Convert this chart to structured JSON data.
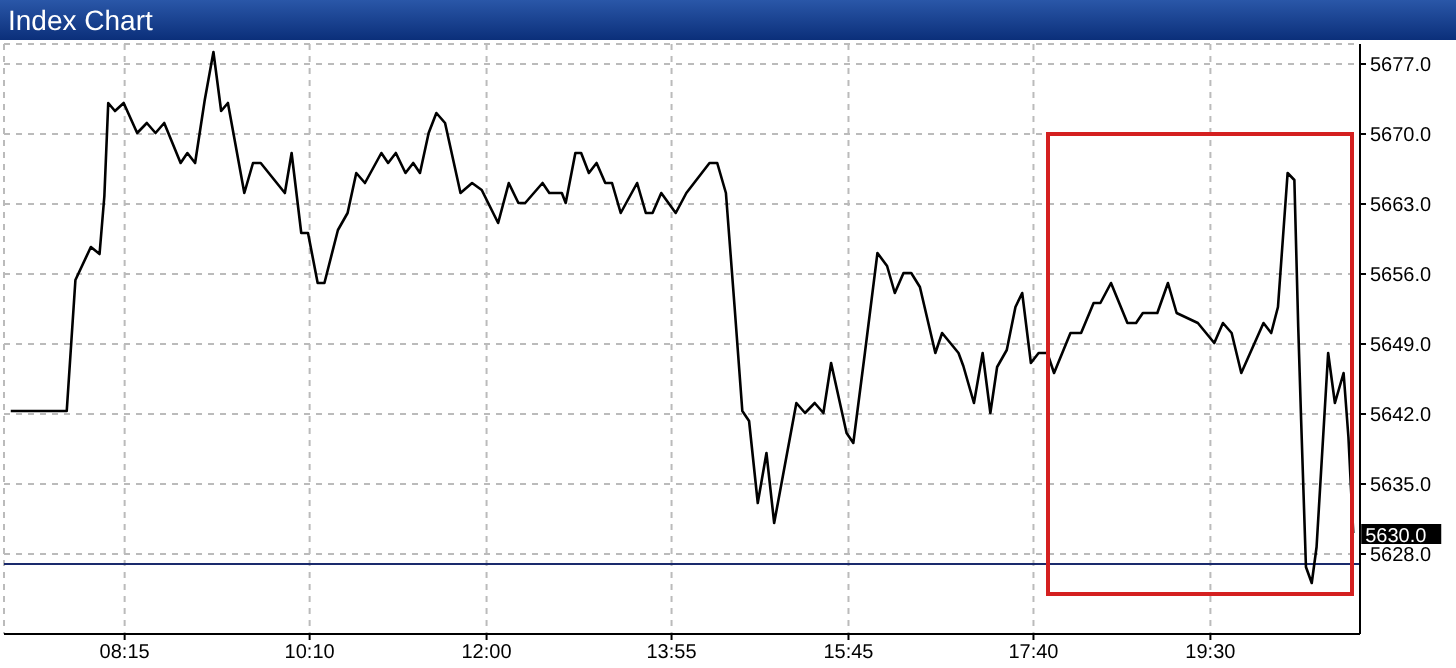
{
  "chart_data": {
    "type": "line",
    "title": "Index Chart",
    "x": [
      7.07,
      7.65,
      7.74,
      7.9,
      7.99,
      8.04,
      8.08,
      8.15,
      8.24,
      8.38,
      8.48,
      8.57,
      8.66,
      8.83,
      8.9,
      8.98,
      9.08,
      9.17,
      9.25,
      9.32,
      9.49,
      9.58,
      9.66,
      9.91,
      9.98,
      10.08,
      10.15,
      10.25,
      10.32,
      10.46,
      10.56,
      10.65,
      10.74,
      10.91,
      10.98,
      11.06,
      11.16,
      11.24,
      11.31,
      11.4,
      11.48,
      11.57,
      11.73,
      11.85,
      11.95,
      12.12,
      12.23,
      12.33,
      12.4,
      12.58,
      12.65,
      12.78,
      12.82,
      12.92,
      12.98,
      13.06,
      13.14,
      13.23,
      13.3,
      13.39,
      13.56,
      13.65,
      13.72,
      13.81,
      13.96,
      14.07,
      14.31,
      14.39,
      14.48,
      14.57,
      14.65,
      14.72,
      14.81,
      14.9,
      14.98,
      15.21,
      15.3,
      15.4,
      15.49,
      15.57,
      15.73,
      15.8,
      15.92,
      16.05,
      16.15,
      16.23,
      16.32,
      16.4,
      16.49,
      16.65,
      16.72,
      16.89,
      16.94,
      17.05,
      17.14,
      17.22,
      17.29,
      17.39,
      17.48,
      17.55,
      17.64,
      17.72,
      17.81,
      17.88,
      18.05,
      18.16,
      18.29,
      18.36,
      18.47,
      18.64,
      18.73,
      18.8,
      18.95,
      19.06,
      19.15,
      19.37,
      19.54,
      19.63,
      19.72,
      19.82,
      20.05,
      20.13,
      20.2,
      20.3,
      20.37,
      20.41,
      20.44,
      20.49,
      20.55,
      20.6,
      20.72,
      20.79,
      20.88,
      20.93,
      20.98
    ],
    "series": [
      {
        "color": "#000000",
        "values": [
          5642.3,
          5642.3,
          5655.4,
          5658.7,
          5658,
          5663.8,
          5673.1,
          5672.3,
          5673.1,
          5670.1,
          5671.1,
          5670.1,
          5671.1,
          5667.1,
          5668.1,
          5667.1,
          5673.4,
          5678.2,
          5672.3,
          5673.1,
          5664.1,
          5667.1,
          5667.1,
          5664.1,
          5668.1,
          5660.1,
          5660.1,
          5655.1,
          5655.1,
          5660.4,
          5662.1,
          5666.1,
          5665.1,
          5668.1,
          5667.1,
          5668.1,
          5666.1,
          5667.1,
          5666.1,
          5670.1,
          5672.1,
          5671.1,
          5664.1,
          5665.1,
          5664.4,
          5661.1,
          5665.1,
          5663.1,
          5663.1,
          5665.1,
          5664.1,
          5664.1,
          5663.1,
          5668.1,
          5668.1,
          5666.1,
          5667.1,
          5665.1,
          5665.1,
          5662.1,
          5665.1,
          5662.1,
          5662.1,
          5664.1,
          5662.1,
          5664.1,
          5667.1,
          5667.1,
          5664.1,
          5652.7,
          5642.3,
          5641.3,
          5633.1,
          5638.1,
          5631.1,
          5643.1,
          5642.1,
          5643.1,
          5642.1,
          5647.1,
          5640.1,
          5639.1,
          5648.1,
          5658.1,
          5656.8,
          5654.1,
          5656.1,
          5656.1,
          5654.7,
          5648.1,
          5650.1,
          5648.1,
          5646.8,
          5643.1,
          5648.1,
          5642.1,
          5646.7,
          5648.4,
          5652.7,
          5654.1,
          5647.1,
          5648.1,
          5648.1,
          5646.1,
          5650.1,
          5650.1,
          5653.1,
          5653.1,
          5655.1,
          5651.1,
          5651.1,
          5652.1,
          5652.1,
          5655.1,
          5652.1,
          5651.1,
          5649.1,
          5651.1,
          5650.1,
          5646.1,
          5651.1,
          5650.1,
          5652.7,
          5666.1,
          5665.4,
          5650.7,
          5641.4,
          5626.7,
          5625.1,
          5628.7,
          5648.1,
          5643.1,
          5646.1,
          5639.7,
          5630.1
        ]
      }
    ],
    "xlim": [
      7.0,
      21.05
    ],
    "xticks": [
      {
        "value": 8.25,
        "label": "08:15"
      },
      {
        "value": 10.1667,
        "label": "10:10"
      },
      {
        "value": 12,
        "label": "12:00"
      },
      {
        "value": 13.9167,
        "label": "13:55"
      },
      {
        "value": 15.75,
        "label": "15:45"
      },
      {
        "value": 17.6667,
        "label": "17:40"
      },
      {
        "value": 19.5,
        "label": "19:30"
      }
    ],
    "ylim": [
      5620,
      5679
    ],
    "yticks": [
      {
        "value": 5628,
        "label": "5628.0"
      },
      {
        "value": 5635,
        "label": "5635.0"
      },
      {
        "value": 5642,
        "label": "5642.0"
      },
      {
        "value": 5649,
        "label": "5649.0"
      },
      {
        "value": 5656,
        "label": "5656.0"
      },
      {
        "value": 5663,
        "label": "5663.0"
      },
      {
        "value": 5670,
        "label": "5670.0"
      },
      {
        "value": 5677,
        "label": "5677.0"
      }
    ],
    "ref_lines": [
      {
        "axis": "y",
        "value": 5627,
        "color": "#1a2a6c"
      }
    ],
    "annotations": [
      {
        "text": "5630.0",
        "x": 20.98,
        "y": 5630
      }
    ],
    "grid": true,
    "marker": "none",
    "line_style": "solid",
    "legend": false
  }
}
